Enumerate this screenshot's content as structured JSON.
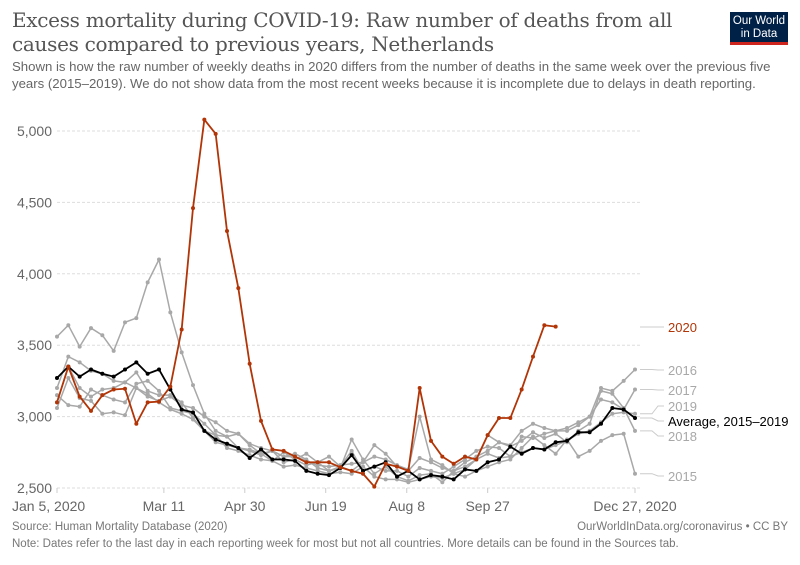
{
  "header": {
    "title": "Excess mortality during COVID-19: Raw number of deaths from all causes compared to previous years, Netherlands",
    "subtitle": "Shown is how the raw number of weekly deaths in 2020 differs from the number of deaths in the same week over the previous five years (2015–2019). We do not show data from the most recent weeks because it is incomplete due to delays in death reporting.",
    "logo_line1": "Our World",
    "logo_line2": "in Data"
  },
  "footer": {
    "source": "Source: Human Mortality Database (2020)",
    "credit": "OurWorldInData.org/coronavirus • CC BY",
    "note": "Note: Dates refer to the last day in each reporting week for most but not all countries. More details can be found in the Sources tab."
  },
  "chart_data": {
    "type": "line",
    "title": "Excess mortality during COVID-19: Raw number of deaths from all causes compared to previous years, Netherlands",
    "xlabel": "",
    "ylabel": "",
    "ylim": [
      2500,
      5100
    ],
    "grid": true,
    "legend": "right-inline",
    "x_range": [
      "Jan 5, 2020",
      "Dec 27, 2020"
    ],
    "x_weeks": 52,
    "x_ticks": [
      {
        "week": 0,
        "label": "Jan 5, 2020"
      },
      {
        "week": 9.43,
        "label": "Mar 11"
      },
      {
        "week": 16.57,
        "label": "Apr 30"
      },
      {
        "week": 23.71,
        "label": "Jun 19"
      },
      {
        "week": 30.86,
        "label": "Aug 8"
      },
      {
        "week": 38,
        "label": "Sep 27"
      },
      {
        "week": 51,
        "label": "Dec 27, 2020"
      }
    ],
    "y_ticks": [
      2500,
      3000,
      3500,
      4000,
      4500,
      5000
    ],
    "y_tick_labels": [
      "2,500",
      "3,000",
      "3,500",
      "4,000",
      "4,500",
      "5,000"
    ],
    "colors": {
      "2020": "#b13507",
      "average": "#000000",
      "past": "#a8a8a8",
      "past_label": "#a8a8a8"
    },
    "series": [
      {
        "name": "2015",
        "kind": "past",
        "values": [
          3150,
          3080,
          3070,
          3190,
          3150,
          3120,
          3100,
          3230,
          3250,
          3180,
          3060,
          3040,
          3020,
          2950,
          2870,
          2780,
          2760,
          2730,
          2700,
          2690,
          2650,
          2660,
          2640,
          2620,
          2600,
          2610,
          2600,
          2650,
          2580,
          2560,
          2560,
          2540,
          2560,
          2580,
          2570,
          2600,
          2580,
          2620,
          2650,
          2680,
          2700,
          2780,
          2860,
          2800,
          2740,
          2840,
          2720,
          2760,
          2830,
          2870,
          2880,
          2600
        ]
      },
      {
        "name": "2016",
        "kind": "past",
        "values": [
          3060,
          3270,
          3130,
          3110,
          3020,
          3030,
          3010,
          3200,
          3160,
          3100,
          3050,
          3020,
          2980,
          2900,
          2820,
          2800,
          2780,
          2760,
          2730,
          2760,
          2720,
          2740,
          2700,
          2640,
          2620,
          2650,
          2760,
          2620,
          2650,
          2620,
          2620,
          2580,
          2640,
          2620,
          2600,
          2650,
          2700,
          2760,
          2790,
          2780,
          2720,
          2860,
          2850,
          2880,
          2900,
          2920,
          2960,
          3000,
          3200,
          3180,
          3250,
          3330
        ]
      },
      {
        "name": "2017",
        "kind": "past",
        "values": [
          3200,
          3420,
          3380,
          3320,
          3300,
          3250,
          3240,
          3310,
          3180,
          3150,
          3150,
          3100,
          2990,
          2900,
          2870,
          2860,
          2880,
          2800,
          2740,
          2760,
          2680,
          2700,
          2740,
          2680,
          2720,
          2650,
          2620,
          2680,
          2800,
          2740,
          2650,
          2620,
          2710,
          2680,
          2640,
          2620,
          2680,
          2720,
          2760,
          2820,
          2800,
          2900,
          2950,
          2920,
          2900,
          2900,
          2940,
          3000,
          3120,
          3100,
          3050,
          3190
        ]
      },
      {
        "name": "2018",
        "kind": "past",
        "values": [
          3560,
          3640,
          3490,
          3620,
          3570,
          3460,
          3660,
          3690,
          3940,
          4100,
          3730,
          3450,
          3220,
          3020,
          2900,
          2860,
          2780,
          2770,
          2740,
          2690,
          2750,
          2700,
          2660,
          2680,
          2620,
          2640,
          2840,
          2700,
          2600,
          2650,
          2580,
          2550,
          2590,
          2600,
          2540,
          2620,
          2650,
          2700,
          2870,
          2820,
          2790,
          2830,
          2890,
          2850,
          2880,
          2820,
          2900,
          2950,
          3180,
          3160,
          3060,
          2900
        ]
      },
      {
        "name": "2019",
        "kind": "past",
        "values": [
          3100,
          3350,
          3200,
          3140,
          3190,
          3200,
          3240,
          3200,
          3140,
          3110,
          3140,
          3080,
          3060,
          3000,
          2960,
          2900,
          2880,
          2810,
          2780,
          2760,
          2720,
          2720,
          2690,
          2660,
          2650,
          2660,
          2670,
          2680,
          2720,
          2700,
          2660,
          2630,
          3000,
          2700,
          2660,
          2600,
          2630,
          2700,
          2740,
          2710,
          2720,
          2750,
          2780,
          2770,
          2800,
          2830,
          2880,
          2900,
          2960,
          3020,
          3030,
          3020
        ]
      },
      {
        "name": "Average, 2015–2019",
        "kind": "average",
        "values": [
          3270,
          3350,
          3280,
          3330,
          3300,
          3280,
          3330,
          3380,
          3300,
          3330,
          3190,
          3050,
          3030,
          2900,
          2840,
          2810,
          2780,
          2710,
          2770,
          2700,
          2700,
          2690,
          2620,
          2600,
          2590,
          2640,
          2730,
          2620,
          2650,
          2680,
          2580,
          2620,
          2560,
          2590,
          2580,
          2560,
          2630,
          2620,
          2680,
          2700,
          2790,
          2740,
          2780,
          2770,
          2820,
          2830,
          2890,
          2890,
          2950,
          3060,
          3050,
          2990
        ]
      },
      {
        "name": "2020",
        "kind": "2020",
        "values": [
          3100,
          3350,
          3140,
          3040,
          3150,
          3190,
          3195,
          2950,
          3100,
          3105,
          3210,
          3610,
          4460,
          5080,
          4980,
          4300,
          3900,
          3370,
          2970,
          2770,
          2760,
          2720,
          2680,
          2680,
          2680,
          2645,
          2620,
          2600,
          2510,
          2670,
          2650,
          2620,
          3200,
          2830,
          2720,
          2670,
          2720,
          2700,
          2870,
          2990,
          2990,
          3190,
          3420,
          3640,
          3630
        ]
      }
    ],
    "end_labels": [
      {
        "series": "2020",
        "label": "2020"
      },
      {
        "series": "2016",
        "label": "2016"
      },
      {
        "series": "2017",
        "label": "2017"
      },
      {
        "series": "2019",
        "label": "2019"
      },
      {
        "series": "Average, 2015–2019",
        "label": "Average, 2015–2019"
      },
      {
        "series": "2018",
        "label": "2018"
      },
      {
        "series": "2015",
        "label": "2015"
      }
    ]
  }
}
